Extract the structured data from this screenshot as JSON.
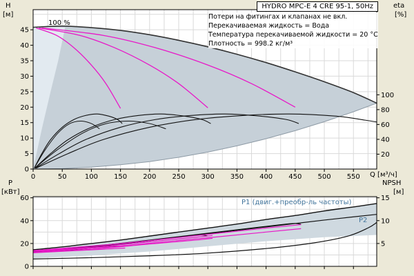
{
  "chart_data": [
    {
      "type": "line",
      "title": "HYDRO MPC-E 4 CRE 95-1, 50Hz",
      "annotations": [
        "Потери на фитингах и клапанах не вкл.",
        "Перекачиваемая жидкость = Вода",
        "Температура перекачиваемой жидкости = 20 °C",
        "Плотность = 998.2 кг/м³"
      ],
      "speed_label": "100 %",
      "xlabel": "Q [м³/ч]",
      "ylabel_left": "H",
      "ylabel_left_unit": "[м]",
      "ylabel_right": "eta",
      "ylabel_right_unit": "[%]",
      "xlim": [
        0,
        590
      ],
      "ylim": [
        0,
        51.5
      ],
      "right_factor": 0.24,
      "grid": {
        "x_step": 25,
        "y_step": 5
      },
      "x_ticks": [
        0,
        50,
        100,
        150,
        200,
        250,
        300,
        350,
        400,
        450,
        500,
        550
      ],
      "x_tick_labels": true,
      "y_ticks_left": [
        0,
        5,
        10,
        15,
        20,
        25,
        30,
        35,
        40,
        45
      ],
      "y_ticks_right": [
        20,
        40,
        60,
        80,
        100
      ],
      "areas": [
        {
          "name": "operating-envelope",
          "fill": "#c6d0d8",
          "stroke": "#8d9aa5",
          "upper": [
            [
              0,
              45.8
            ],
            [
              50,
              46.2
            ],
            [
              100,
              45.7
            ],
            [
              150,
              44.8
            ],
            [
              200,
              43.4
            ],
            [
              250,
              41.6
            ],
            [
              300,
              39.5
            ],
            [
              350,
              37.1
            ],
            [
              400,
              34.4
            ],
            [
              450,
              31.4
            ],
            [
              500,
              28.2
            ],
            [
              550,
              24.7
            ],
            [
              590,
              21.3
            ]
          ],
          "lower": [
            [
              0,
              0
            ],
            [
              50,
              0.15
            ],
            [
              100,
              0.6
            ],
            [
              150,
              1.4
            ],
            [
              200,
              2.4
            ],
            [
              250,
              3.8
            ],
            [
              300,
              5.5
            ],
            [
              350,
              7.5
            ],
            [
              400,
              9.8
            ],
            [
              450,
              12.4
            ],
            [
              500,
              15.3
            ],
            [
              550,
              18.5
            ],
            [
              590,
              21.3
            ]
          ]
        },
        {
          "name": "low-speed-wedge",
          "fill": "#e2eaf0",
          "pts": [
            [
              0,
              0
            ],
            [
              15,
              13
            ],
            [
              30,
              25
            ],
            [
              43,
              35
            ],
            [
              55,
              45.8
            ],
            [
              0,
              45.8
            ]
          ]
        }
      ],
      "series": [
        {
          "name": "max-speed-4-pumps",
          "color": "#333333",
          "width": 1.6,
          "points": [
            [
              0,
              45.8
            ],
            [
              50,
              46.2
            ],
            [
              100,
              45.7
            ],
            [
              150,
              44.8
            ],
            [
              200,
              43.4
            ],
            [
              250,
              41.6
            ],
            [
              300,
              39.5
            ],
            [
              350,
              37.1
            ],
            [
              400,
              34.4
            ],
            [
              450,
              31.4
            ],
            [
              500,
              28.2
            ],
            [
              550,
              24.7
            ],
            [
              590,
              21.3
            ]
          ]
        },
        {
          "name": "speed-curve-1-pump",
          "color": "#e818c8",
          "width": 1.3,
          "points": [
            [
              5,
              45.6
            ],
            [
              40,
              43.2
            ],
            [
              70,
              39.2
            ],
            [
              100,
              33.6
            ],
            [
              125,
              27.6
            ],
            [
              150,
              19.6
            ]
          ]
        },
        {
          "name": "speed-curve-2-pumps",
          "color": "#e818c8",
          "width": 1.3,
          "points": [
            [
              10,
              45.6
            ],
            [
              80,
              43.2
            ],
            [
              140,
              39.2
            ],
            [
              200,
              33.6
            ],
            [
              250,
              27.6
            ],
            [
              300,
              19.8
            ]
          ]
        },
        {
          "name": "speed-curve-3-pumps",
          "color": "#e818c8",
          "width": 1.3,
          "points": [
            [
              15,
              45.6
            ],
            [
              120,
              43.2
            ],
            [
              210,
              39.2
            ],
            [
              300,
              33.6
            ],
            [
              375,
              27.6
            ],
            [
              450,
              20
            ]
          ]
        },
        {
          "name": "efficiency-1-pump",
          "color": "#111111",
          "width": 1.1,
          "points": [
            [
              2,
              0.3
            ],
            [
              15,
              5
            ],
            [
              30,
              9.5
            ],
            [
              50,
              13.5
            ],
            [
              70,
              16
            ],
            [
              90,
              17.3
            ],
            [
              110,
              17.8
            ],
            [
              130,
              17.1
            ],
            [
              145,
              16
            ],
            [
              153,
              14.7
            ]
          ]
        },
        {
          "name": "efficiency-2-pumps",
          "color": "#111111",
          "width": 1.1,
          "points": [
            [
              3,
              0.3
            ],
            [
              30,
              5
            ],
            [
              60,
              9.5
            ],
            [
              100,
              13.5
            ],
            [
              140,
              16
            ],
            [
              180,
              17.3
            ],
            [
              220,
              17.8
            ],
            [
              260,
              17.1
            ],
            [
              290,
              16
            ],
            [
              305,
              14.7
            ]
          ]
        },
        {
          "name": "efficiency-3-pumps",
          "color": "#111111",
          "width": 1.1,
          "points": [
            [
              4,
              0.3
            ],
            [
              45,
              5
            ],
            [
              90,
              9.5
            ],
            [
              150,
              13.5
            ],
            [
              210,
              16
            ],
            [
              270,
              17.3
            ],
            [
              330,
              17.8
            ],
            [
              390,
              17.1
            ],
            [
              435,
              16
            ],
            [
              456,
              14.7
            ]
          ]
        },
        {
          "name": "efficiency-4-pumps",
          "color": "#111111",
          "width": 1.1,
          "points": [
            [
              5,
              0.3
            ],
            [
              60,
              5
            ],
            [
              120,
              9.5
            ],
            [
              200,
              13.5
            ],
            [
              280,
              16
            ],
            [
              360,
              17.3
            ],
            [
              440,
              17.8
            ],
            [
              520,
              17.1
            ],
            [
              570,
              15.8
            ],
            [
              590,
              15.2
            ]
          ]
        },
        {
          "name": "efficiency-reduced-a",
          "color": "#111111",
          "width": 1.0,
          "points": [
            [
              2,
              0.3
            ],
            [
              20,
              6
            ],
            [
              42,
              11.5
            ],
            [
              62,
              14.6
            ],
            [
              82,
              15.5
            ],
            [
              100,
              14.7
            ],
            [
              114,
              13
            ]
          ]
        },
        {
          "name": "efficiency-reduced-b",
          "color": "#111111",
          "width": 1.0,
          "points": [
            [
              3,
              0.3
            ],
            [
              40,
              6
            ],
            [
              84,
              11.5
            ],
            [
              124,
              14.6
            ],
            [
              164,
              15.5
            ],
            [
              200,
              14.7
            ],
            [
              228,
              13
            ]
          ]
        }
      ]
    },
    {
      "type": "line",
      "ylabel_left": "P",
      "ylabel_left_unit": "[кВт]",
      "ylabel_right": "NPSH",
      "ylabel_right_unit": "[м]",
      "curve_labels": {
        "p1": "P1 (двиг.+преобр-ль частоты)",
        "p2": "P2"
      },
      "label_color": "#41749b",
      "xlim": [
        0,
        590
      ],
      "ylim": [
        0,
        61
      ],
      "right_factor": 4,
      "grid": {
        "x_step": 25,
        "y_step": 10
      },
      "x_ticks": [
        0,
        50,
        100,
        150,
        200,
        250,
        300,
        350,
        400,
        450,
        500,
        550
      ],
      "x_tick_labels": false,
      "y_ticks_left": [
        0,
        20,
        40,
        60
      ],
      "y_ticks_right": [
        5,
        10,
        15
      ],
      "areas": [
        {
          "name": "power-band",
          "fill": "#cfd9e0",
          "upper": [
            [
              0,
              14.5
            ],
            [
              100,
              20
            ],
            [
              200,
              26.5
            ],
            [
              300,
              33.5
            ],
            [
              400,
              41
            ],
            [
              500,
              48.5
            ],
            [
              590,
              55
            ]
          ],
          "lower": [
            [
              0,
              7
            ],
            [
              100,
              9.5
            ],
            [
              200,
              13
            ],
            [
              300,
              17.5
            ],
            [
              400,
              22
            ],
            [
              500,
              25.5
            ],
            [
              590,
              27.5
            ]
          ]
        }
      ],
      "series": [
        {
          "name": "p1-total",
          "color": "#111111",
          "width": 1.4,
          "points": [
            [
              0,
              14.5
            ],
            [
              50,
              17
            ],
            [
              100,
              20
            ],
            [
              150,
              23
            ],
            [
              200,
              26.5
            ],
            [
              250,
              30
            ],
            [
              300,
              33.5
            ],
            [
              350,
              37
            ],
            [
              400,
              41
            ],
            [
              450,
              44.5
            ],
            [
              500,
              48.5
            ],
            [
              550,
              52
            ],
            [
              590,
              55
            ]
          ]
        },
        {
          "name": "p2-total",
          "color": "#111111",
          "width": 1.2,
          "points": [
            [
              0,
              12
            ],
            [
              100,
              17
            ],
            [
              200,
              22.5
            ],
            [
              300,
              28.5
            ],
            [
              400,
              34.5
            ],
            [
              500,
              40.5
            ],
            [
              590,
              45.5
            ]
          ]
        },
        {
          "name": "p-3-pumps",
          "color": "#111111",
          "width": 1.1,
          "points": [
            [
              0,
              13
            ],
            [
              100,
              17.5
            ],
            [
              200,
              23
            ],
            [
              300,
              29
            ],
            [
              400,
              35
            ],
            [
              445,
              37.5
            ],
            [
              460,
              36.8
            ]
          ]
        },
        {
          "name": "p-2-pumps",
          "color": "#111111",
          "width": 1.1,
          "points": [
            [
              0,
              12.5
            ],
            [
              80,
              15.5
            ],
            [
              160,
              20
            ],
            [
              240,
              25
            ],
            [
              285,
              27.3
            ],
            [
              300,
              26.6
            ]
          ]
        },
        {
          "name": "p-1-pump",
          "color": "#111111",
          "width": 1.1,
          "points": [
            [
              0,
              12
            ],
            [
              50,
              13.8
            ],
            [
              100,
              16
            ],
            [
              140,
              17.8
            ],
            [
              155,
              17.4
            ]
          ]
        },
        {
          "name": "p-magenta-3a",
          "color": "#e818c8",
          "width": 1.2,
          "points": [
            [
              0,
              13.8
            ],
            [
              150,
              20
            ],
            [
              300,
              28
            ],
            [
              400,
              33.5
            ],
            [
              460,
              36.5
            ]
          ]
        },
        {
          "name": "p-magenta-3b",
          "color": "#e818c8",
          "width": 1.2,
          "points": [
            [
              0,
              12.3
            ],
            [
              150,
              18
            ],
            [
              300,
              25
            ],
            [
              400,
              30
            ],
            [
              460,
              33
            ]
          ]
        },
        {
          "name": "p-magenta-2a",
          "color": "#e818c8",
          "width": 1.2,
          "points": [
            [
              0,
              13.5
            ],
            [
              100,
              16.8
            ],
            [
              200,
              21.5
            ],
            [
              280,
              25.5
            ],
            [
              308,
              27
            ]
          ]
        },
        {
          "name": "p-magenta-2b",
          "color": "#e818c8",
          "width": 1.2,
          "points": [
            [
              0,
              12
            ],
            [
              100,
              15
            ],
            [
              200,
              19.5
            ],
            [
              280,
              23
            ],
            [
              308,
              24.5
            ]
          ]
        },
        {
          "name": "p-magenta-1a",
          "color": "#e818c8",
          "width": 1.2,
          "points": [
            [
              0,
              13.2
            ],
            [
              75,
              15.3
            ],
            [
              130,
              17
            ],
            [
              158,
              17.8
            ]
          ]
        },
        {
          "name": "p-magenta-1b",
          "color": "#e818c8",
          "width": 1.2,
          "points": [
            [
              0,
              11.8
            ],
            [
              75,
              13.8
            ],
            [
              130,
              15.2
            ],
            [
              158,
              16
            ]
          ]
        },
        {
          "name": "npsh",
          "color": "#111111",
          "width": 1.2,
          "axis": "right",
          "points": [
            [
              0,
              1.6
            ],
            [
              100,
              1.9
            ],
            [
              200,
              2.3
            ],
            [
              300,
              2.9
            ],
            [
              400,
              3.9
            ],
            [
              480,
              5.1
            ],
            [
              540,
              6.6
            ],
            [
              575,
              8.4
            ],
            [
              590,
              9.6
            ]
          ]
        }
      ]
    }
  ]
}
